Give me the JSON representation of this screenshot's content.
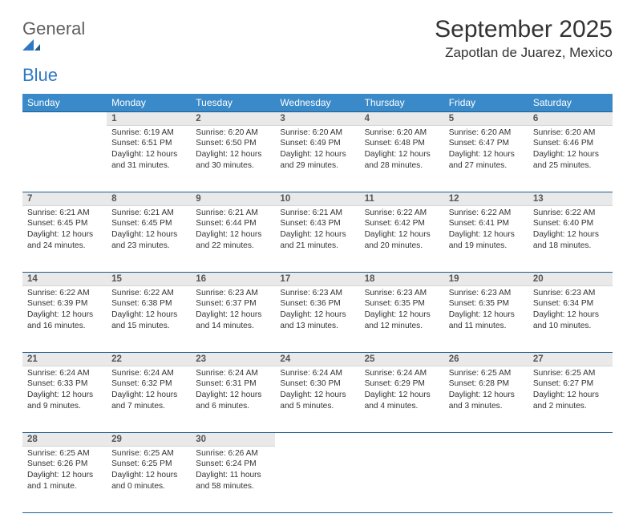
{
  "logo": {
    "word1": "General",
    "word2": "Blue"
  },
  "header": {
    "title": "September 2025",
    "location": "Zapotlan de Juarez, Mexico"
  },
  "colors": {
    "header_bg": "#3a8ac9",
    "header_text": "#ffffff",
    "divider": "#1f5d8f",
    "daynum_bg": "#e9e9e9",
    "daynum_text": "#555555",
    "body_text": "#333333",
    "page_bg": "#ffffff",
    "logo_gray": "#5f5f5f",
    "logo_blue": "#2f78c4"
  },
  "typography": {
    "title_fontsize": 30,
    "location_fontsize": 17,
    "dayhead_fontsize": 12,
    "cell_fontsize": 10.2
  },
  "day_names": [
    "Sunday",
    "Monday",
    "Tuesday",
    "Wednesday",
    "Thursday",
    "Friday",
    "Saturday"
  ],
  "weeks": [
    [
      null,
      {
        "n": "1",
        "sr": "Sunrise: 6:19 AM",
        "ss": "Sunset: 6:51 PM",
        "dl": "Daylight: 12 hours and 31 minutes."
      },
      {
        "n": "2",
        "sr": "Sunrise: 6:20 AM",
        "ss": "Sunset: 6:50 PM",
        "dl": "Daylight: 12 hours and 30 minutes."
      },
      {
        "n": "3",
        "sr": "Sunrise: 6:20 AM",
        "ss": "Sunset: 6:49 PM",
        "dl": "Daylight: 12 hours and 29 minutes."
      },
      {
        "n": "4",
        "sr": "Sunrise: 6:20 AM",
        "ss": "Sunset: 6:48 PM",
        "dl": "Daylight: 12 hours and 28 minutes."
      },
      {
        "n": "5",
        "sr": "Sunrise: 6:20 AM",
        "ss": "Sunset: 6:47 PM",
        "dl": "Daylight: 12 hours and 27 minutes."
      },
      {
        "n": "6",
        "sr": "Sunrise: 6:20 AM",
        "ss": "Sunset: 6:46 PM",
        "dl": "Daylight: 12 hours and 25 minutes."
      }
    ],
    [
      {
        "n": "7",
        "sr": "Sunrise: 6:21 AM",
        "ss": "Sunset: 6:45 PM",
        "dl": "Daylight: 12 hours and 24 minutes."
      },
      {
        "n": "8",
        "sr": "Sunrise: 6:21 AM",
        "ss": "Sunset: 6:45 PM",
        "dl": "Daylight: 12 hours and 23 minutes."
      },
      {
        "n": "9",
        "sr": "Sunrise: 6:21 AM",
        "ss": "Sunset: 6:44 PM",
        "dl": "Daylight: 12 hours and 22 minutes."
      },
      {
        "n": "10",
        "sr": "Sunrise: 6:21 AM",
        "ss": "Sunset: 6:43 PM",
        "dl": "Daylight: 12 hours and 21 minutes."
      },
      {
        "n": "11",
        "sr": "Sunrise: 6:22 AM",
        "ss": "Sunset: 6:42 PM",
        "dl": "Daylight: 12 hours and 20 minutes."
      },
      {
        "n": "12",
        "sr": "Sunrise: 6:22 AM",
        "ss": "Sunset: 6:41 PM",
        "dl": "Daylight: 12 hours and 19 minutes."
      },
      {
        "n": "13",
        "sr": "Sunrise: 6:22 AM",
        "ss": "Sunset: 6:40 PM",
        "dl": "Daylight: 12 hours and 18 minutes."
      }
    ],
    [
      {
        "n": "14",
        "sr": "Sunrise: 6:22 AM",
        "ss": "Sunset: 6:39 PM",
        "dl": "Daylight: 12 hours and 16 minutes."
      },
      {
        "n": "15",
        "sr": "Sunrise: 6:22 AM",
        "ss": "Sunset: 6:38 PM",
        "dl": "Daylight: 12 hours and 15 minutes."
      },
      {
        "n": "16",
        "sr": "Sunrise: 6:23 AM",
        "ss": "Sunset: 6:37 PM",
        "dl": "Daylight: 12 hours and 14 minutes."
      },
      {
        "n": "17",
        "sr": "Sunrise: 6:23 AM",
        "ss": "Sunset: 6:36 PM",
        "dl": "Daylight: 12 hours and 13 minutes."
      },
      {
        "n": "18",
        "sr": "Sunrise: 6:23 AM",
        "ss": "Sunset: 6:35 PM",
        "dl": "Daylight: 12 hours and 12 minutes."
      },
      {
        "n": "19",
        "sr": "Sunrise: 6:23 AM",
        "ss": "Sunset: 6:35 PM",
        "dl": "Daylight: 12 hours and 11 minutes."
      },
      {
        "n": "20",
        "sr": "Sunrise: 6:23 AM",
        "ss": "Sunset: 6:34 PM",
        "dl": "Daylight: 12 hours and 10 minutes."
      }
    ],
    [
      {
        "n": "21",
        "sr": "Sunrise: 6:24 AM",
        "ss": "Sunset: 6:33 PM",
        "dl": "Daylight: 12 hours and 9 minutes."
      },
      {
        "n": "22",
        "sr": "Sunrise: 6:24 AM",
        "ss": "Sunset: 6:32 PM",
        "dl": "Daylight: 12 hours and 7 minutes."
      },
      {
        "n": "23",
        "sr": "Sunrise: 6:24 AM",
        "ss": "Sunset: 6:31 PM",
        "dl": "Daylight: 12 hours and 6 minutes."
      },
      {
        "n": "24",
        "sr": "Sunrise: 6:24 AM",
        "ss": "Sunset: 6:30 PM",
        "dl": "Daylight: 12 hours and 5 minutes."
      },
      {
        "n": "25",
        "sr": "Sunrise: 6:24 AM",
        "ss": "Sunset: 6:29 PM",
        "dl": "Daylight: 12 hours and 4 minutes."
      },
      {
        "n": "26",
        "sr": "Sunrise: 6:25 AM",
        "ss": "Sunset: 6:28 PM",
        "dl": "Daylight: 12 hours and 3 minutes."
      },
      {
        "n": "27",
        "sr": "Sunrise: 6:25 AM",
        "ss": "Sunset: 6:27 PM",
        "dl": "Daylight: 12 hours and 2 minutes."
      }
    ],
    [
      {
        "n": "28",
        "sr": "Sunrise: 6:25 AM",
        "ss": "Sunset: 6:26 PM",
        "dl": "Daylight: 12 hours and 1 minute."
      },
      {
        "n": "29",
        "sr": "Sunrise: 6:25 AM",
        "ss": "Sunset: 6:25 PM",
        "dl": "Daylight: 12 hours and 0 minutes."
      },
      {
        "n": "30",
        "sr": "Sunrise: 6:26 AM",
        "ss": "Sunset: 6:24 PM",
        "dl": "Daylight: 11 hours and 58 minutes."
      },
      null,
      null,
      null,
      null
    ]
  ]
}
